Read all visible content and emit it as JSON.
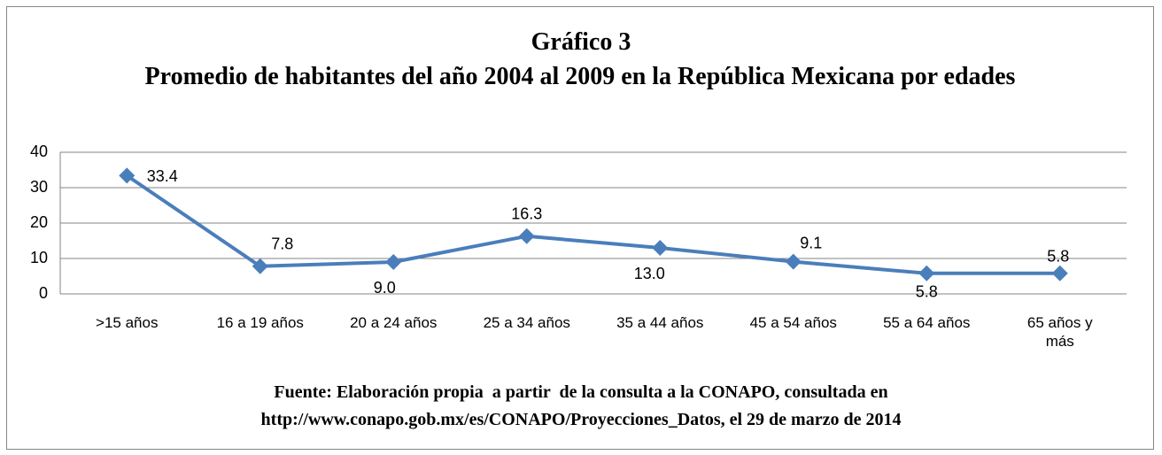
{
  "chart_data": {
    "type": "line",
    "title": "Gráfico 3",
    "subtitle": "Promedio de habitantes del año 2004 al 2009 en la República Mexicana por edades",
    "categories": [
      ">15 años",
      "16 a 19 años",
      "20 a 24 años",
      "25 a 34 años",
      "35 a 44 años",
      "45 a 54 años",
      "55 a 64 años",
      "65 años y más"
    ],
    "values": [
      33.4,
      7.8,
      9.0,
      16.3,
      13.0,
      9.1,
      5.8,
      5.8
    ],
    "value_labels": [
      "33.4",
      "7.8",
      "9.0",
      "16.3",
      "13.0",
      "9.1",
      "5.8",
      "5.8"
    ],
    "color": "#4a7ebb",
    "ylim": [
      0,
      40
    ],
    "yticks": [
      0,
      10,
      20,
      30,
      40
    ],
    "grid": true,
    "source": [
      "Fuente: Elaboración propia  a partir  de la consulta a la CONAPO, consultada en",
      "http://www.conapo.gob.mx/es/CONAPO/Proyecciones_Datos, el 29 de marzo de 2014"
    ]
  }
}
